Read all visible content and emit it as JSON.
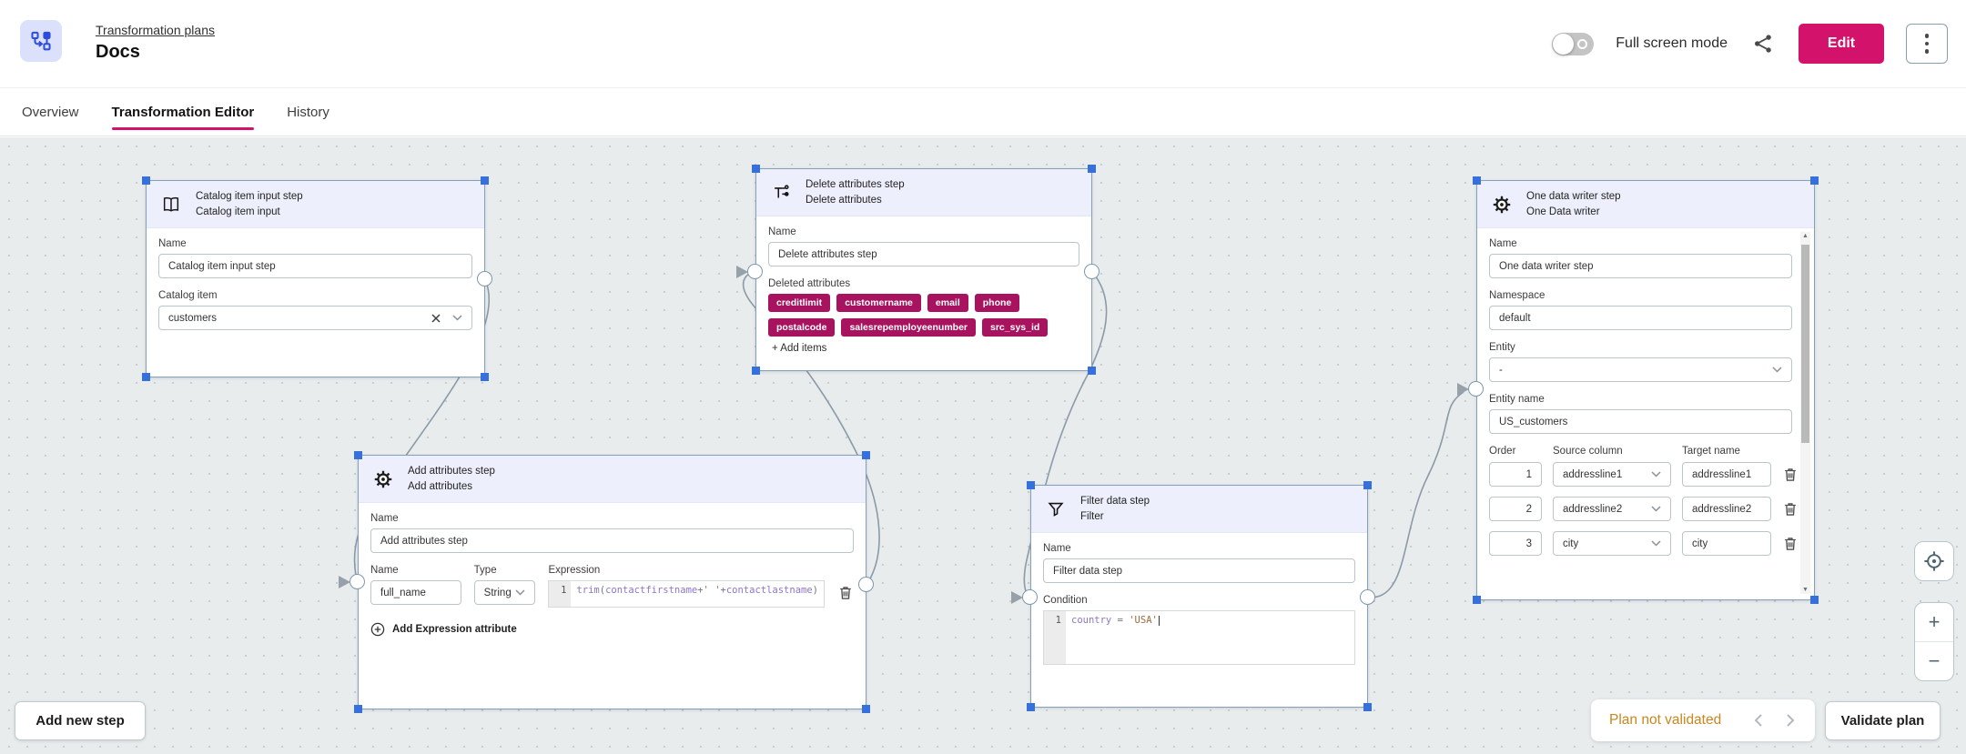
{
  "header": {
    "breadcrumb": "Transformation plans",
    "title": "Docs",
    "fullscreen_label": "Full screen mode",
    "edit_label": "Edit"
  },
  "tabs": [
    {
      "label": "Overview",
      "active": false
    },
    {
      "label": "Transformation Editor",
      "active": true
    },
    {
      "label": "History",
      "active": false
    }
  ],
  "colors": {
    "accent": "#d3136b",
    "chip": "#a8135f",
    "status_warning": "#c8861f"
  },
  "steps": {
    "catalog": {
      "title": "Catalog item input step",
      "subtitle": "Catalog item input",
      "name_label": "Name",
      "name_value": "Catalog item input step",
      "catalog_item_label": "Catalog item",
      "catalog_item_value": "customers"
    },
    "delete": {
      "title": "Delete attributes step",
      "subtitle": "Delete attributes",
      "name_label": "Name",
      "name_value": "Delete attributes step",
      "deleted_label": "Deleted attributes",
      "chips": [
        "creditlimit",
        "customername",
        "email",
        "phone",
        "postalcode",
        "salesrepemployeenumber",
        "src_sys_id"
      ],
      "add_items_label": "+ Add items"
    },
    "add": {
      "title": "Add attributes step",
      "subtitle": "Add attributes",
      "name_label": "Name",
      "name_value": "Add attributes step",
      "attr_name_label": "Name",
      "attr_name_value": "full_name",
      "type_label": "Type",
      "type_value": "String",
      "expression_label": "Expression",
      "expression_line": "1",
      "expression_code": "trim(contactfirstname+' '+contactlastname)",
      "add_expression_label": "Add Expression attribute"
    },
    "filter": {
      "title": "Filter data step",
      "subtitle": "Filter",
      "name_label": "Name",
      "name_value": "Filter data step",
      "condition_label": "Condition",
      "condition_line": "1",
      "condition_code": "country = 'USA'"
    },
    "writer": {
      "title": "One data writer step",
      "subtitle": "One Data writer",
      "name_label": "Name",
      "name_value": "One data writer step",
      "namespace_label": "Namespace",
      "namespace_value": "default",
      "entity_label": "Entity",
      "entity_value": "-",
      "entity_name_label": "Entity name",
      "entity_name_value": "US_customers",
      "columns": [
        "Order",
        "Source column",
        "Target name"
      ],
      "rows": [
        {
          "order": "1",
          "source": "addressline1",
          "target": "addressline1"
        },
        {
          "order": "2",
          "source": "addressline2",
          "target": "addressline2"
        },
        {
          "order": "3",
          "source": "city",
          "target": "city"
        }
      ]
    }
  },
  "footer": {
    "add_step_label": "Add new step",
    "status_text": "Plan not validated",
    "validate_label": "Validate plan"
  },
  "canvas_controls": {
    "zoom_in": "+",
    "zoom_out": "−"
  }
}
